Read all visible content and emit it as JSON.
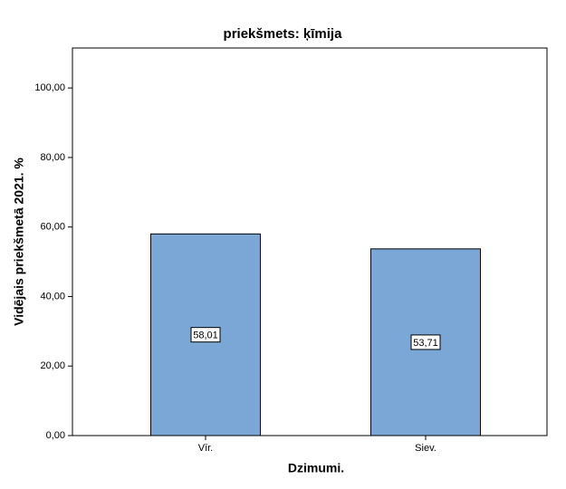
{
  "chart_data": {
    "type": "bar",
    "title": "priekšmets: ķīmija",
    "xlabel": "Dzimumi.",
    "ylabel": "Vidējais priekšmetā 2021. %",
    "categories": [
      "Vīr.",
      "Siev."
    ],
    "values": [
      58.01,
      53.71
    ],
    "value_labels": [
      "58,01",
      "53,71"
    ],
    "color": "#7ba7d6",
    "ylim": [
      0,
      111.5
    ],
    "yticks": [
      {
        "value": 0,
        "label": "0,00"
      },
      {
        "value": 20,
        "label": "20,00"
      },
      {
        "value": 40,
        "label": "40,00"
      },
      {
        "value": 60,
        "label": "60,00"
      },
      {
        "value": 80,
        "label": "80,00"
      },
      {
        "value": 100,
        "label": "100,00"
      }
    ]
  }
}
